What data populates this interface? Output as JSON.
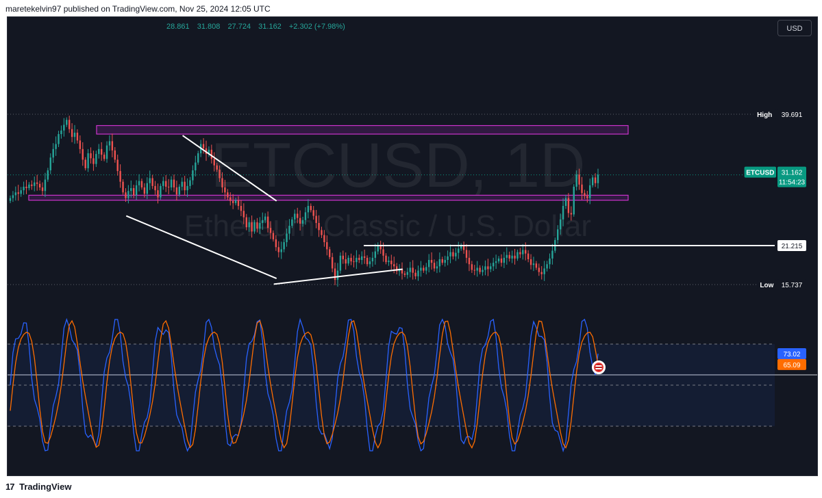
{
  "header": {
    "attribution": "maretekelvin97 published on TradingView.com, Nov 25, 2024 12:05 UTC"
  },
  "ohlc": {
    "open": "28.861",
    "high": "31.808",
    "low": "27.724",
    "close": "31.162",
    "change": "+2.302 (+7.98%)"
  },
  "currency_button": "USD",
  "watermark": {
    "symbol": "ETCUSD, 1D",
    "name": "Ethereum Classic / U.S. Dollar"
  },
  "price_axis": {
    "high_label": "High",
    "high_value": "39.691",
    "symbol_label": "ETCUSD",
    "last_price": "31.162",
    "countdown": "11:54:23",
    "level_value": "21.215",
    "low_label": "Low",
    "low_value": "15.737"
  },
  "oscillator": {
    "k_value": "73.02",
    "d_value": "65.09"
  },
  "footer": {
    "brand": "TradingView",
    "mark": "17"
  },
  "colors": {
    "background": "#131722",
    "up": "#26a69a",
    "down": "#ef5350",
    "zone": "#cc33cc",
    "k_line": "#2962ff",
    "d_line": "#ff6d00",
    "last_price_bg": "#089981"
  },
  "chart_data": [
    {
      "type": "candlestick",
      "symbol": "ETCUSD",
      "timeframe": "1D",
      "last": {
        "open": 28.861,
        "high": 31.808,
        "low": 27.724,
        "close": 31.162
      },
      "period_high": 39.691,
      "period_low": 15.737,
      "horizontal_level": 21.215,
      "zones": [
        {
          "from": 36.9,
          "to": 38.1
        },
        {
          "from": 27.6,
          "to": 28.3
        }
      ],
      "trendlines": [
        {
          "from": {
            "bar": 54,
            "price": 36.7
          },
          "to": {
            "bar": 89,
            "price": 27.5
          }
        },
        {
          "from": {
            "bar": 33,
            "price": 25.4
          },
          "to": {
            "bar": 89,
            "price": 16.6
          }
        },
        {
          "from": {
            "bar": 88,
            "price": 15.8
          },
          "to": {
            "bar": 136,
            "price": 17.9
          }
        }
      ],
      "closes": [
        27.9,
        28.3,
        28.7,
        28.5,
        29.0,
        29.5,
        29.3,
        29.8,
        29.6,
        30.1,
        29.9,
        29.4,
        28.9,
        30.5,
        31.8,
        33.6,
        34.8,
        35.5,
        36.9,
        37.4,
        38.2,
        38.9,
        37.6,
        36.5,
        37.1,
        36.0,
        34.8,
        33.3,
        32.1,
        34.2,
        33.5,
        32.7,
        34.1,
        34.8,
        34.0,
        33.4,
        35.3,
        35.9,
        34.6,
        33.3,
        31.7,
        30.2,
        28.7,
        27.9,
        28.9,
        29.3,
        28.3,
        29.7,
        30.3,
        29.4,
        28.5,
        30.0,
        30.7,
        29.6,
        29.0,
        28.0,
        29.6,
        30.3,
        29.5,
        29.4,
        30.5,
        29.4,
        28.4,
        29.5,
        30.2,
        29.0,
        29.6,
        30.4,
        31.8,
        32.9,
        34.2,
        35.5,
        34.9,
        34.1,
        34.7,
        33.4,
        32.5,
        31.9,
        30.7,
        29.4,
        28.7,
        28.0,
        27.5,
        27.2,
        27.6,
        26.8,
        26.1,
        25.2,
        23.8,
        24.5,
        23.2,
        24.5,
        23.6,
        24.4,
        24.8,
        25.3,
        23.7,
        23.0,
        22.1,
        21.0,
        20.3,
        20.7,
        21.7,
        22.9,
        24.0,
        24.9,
        25.7,
        25.1,
        24.3,
        24.8,
        25.9,
        26.8,
        26.2,
        25.4,
        24.4,
        23.4,
        22.7,
        21.7,
        20.7,
        19.6,
        18.0,
        16.4,
        17.7,
        19.8,
        19.3,
        18.7,
        19.5,
        19.0,
        18.9,
        19.5,
        19.2,
        19.7,
        19.5,
        18.6,
        19.0,
        19.5,
        20.4,
        21.2,
        20.7,
        19.8,
        18.9,
        19.1,
        18.6,
        18.3,
        17.6,
        17.9,
        17.3,
        17.1,
        17.5,
        18.1,
        17.4,
        16.9,
        17.7,
        18.1,
        17.7,
        18.2,
        19.2,
        18.8,
        18.0,
        18.3,
        19.3,
        18.8,
        19.2,
        19.7,
        20.3,
        19.7,
        20.2,
        20.8,
        21.2,
        20.6,
        19.5,
        18.6,
        17.8,
        17.7,
        18.1,
        17.5,
        17.8,
        18.3,
        17.9,
        18.3,
        18.8,
        19.0,
        19.4,
        18.8,
        19.5,
        19.9,
        19.4,
        19.8,
        19.4,
        20.3,
        20.0,
        20.6,
        20.1,
        19.3,
        18.5,
        18.7,
        18.1,
        17.5,
        17.2,
        18.0,
        18.6,
        19.4,
        20.5,
        22.0,
        23.5,
        24.9,
        26.8,
        27.9,
        25.8,
        25.6,
        29.5,
        31.2,
        29.8,
        28.6,
        28.2,
        27.9,
        29.7,
        30.8,
        30.0,
        31.2
      ],
      "stochastic": {
        "k": 73.02,
        "d": 65.09,
        "band_upper": 80,
        "band_lower": 20
      }
    }
  ]
}
